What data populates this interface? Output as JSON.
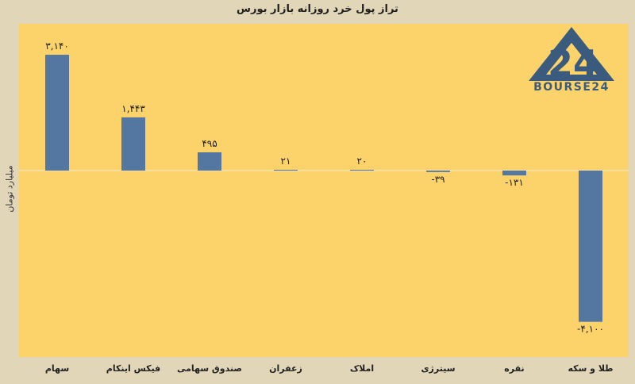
{
  "chart_data": {
    "type": "bar",
    "title": "تراز پول خرد روزانه بازار بورس",
    "ylabel": "میلیارد تومان",
    "xlabel": "",
    "categories": [
      "سهام",
      "فیکس اینکام",
      "صندوق سهامی",
      "زعفران",
      "املاک",
      "سیترژی",
      "نقره",
      "طلا و سکه"
    ],
    "values": [
      3140,
      1443,
      495,
      21,
      20,
      -39,
      -131,
      -4100
    ],
    "value_labels": [
      "۳,۱۴۰",
      "۱,۴۴۳",
      "۴۹۵",
      "۲۱",
      "۲۰",
      "-۳۹",
      "-۱۳۱",
      "-۴,۱۰۰"
    ],
    "ylim": [
      -5000,
      3600
    ],
    "grid": false,
    "bar_color": "#5477a1",
    "plot_bg": "#fcd36a",
    "page_bg": "#e2d6b8"
  },
  "logo": {
    "text": "BOURSE24",
    "numeral": "24",
    "color": "#3b5b7e"
  }
}
